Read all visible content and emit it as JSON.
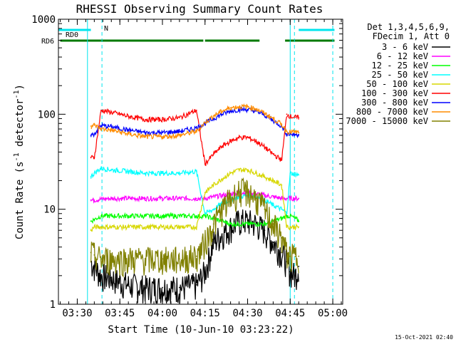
{
  "chart_data": {
    "type": "line",
    "title": "RHESSI Observing Summary Count Rates",
    "xlabel": "Start Time (10-Jun-10 03:23:22)",
    "ylabel": "Count Rate (s⁻¹ detector⁻¹)",
    "ylabel_parts": {
      "main": "Count Rate (s",
      "exp1": "-1",
      "mid": " detector",
      "exp2": "-1",
      "end": ")"
    },
    "yscale": "log",
    "ylim": [
      1,
      1000
    ],
    "xlim": [
      3.3894,
      5.0583
    ],
    "x_ticks": [
      "03:30",
      "03:45",
      "04:00",
      "04:15",
      "04:30",
      "04:45",
      "05:00"
    ],
    "x_tick_values": [
      3.5,
      3.75,
      4.0,
      4.25,
      4.5,
      4.75,
      5.0
    ],
    "y_ticks": [
      "1",
      "10",
      "100",
      "1000"
    ],
    "y_tick_values": [
      1,
      10,
      100,
      1000
    ],
    "legend_header": [
      "Det 1,3,4,5,6,9,",
      "FDecim 1, Att 0"
    ],
    "legend_placement": "top-right",
    "timestamp": "15-Oct-2021 02:40",
    "flags": [
      {
        "label": "RD0",
        "color": "#00e5ee",
        "segments": [
          [
            3.39,
            3.58
          ],
          [
            4.8,
            5.01
          ]
        ]
      },
      {
        "label": "RD6",
        "color": "#007a00",
        "segments": [
          [
            3.4,
            3.64
          ],
          [
            3.64,
            4.24
          ],
          [
            4.25,
            4.57
          ],
          [
            4.72,
            5.01
          ]
        ]
      },
      {
        "label": "N",
        "color": "#00e5ee",
        "segments": []
      }
    ],
    "vertical_lines": [
      {
        "x": 3.56,
        "color": "#00e5ee",
        "style": "solid"
      },
      {
        "x": 3.645,
        "color": "#00e5ee",
        "style": "dashed"
      },
      {
        "x": 4.75,
        "color": "#00e5ee",
        "style": "solid"
      },
      {
        "x": 4.775,
        "color": "#00e5ee",
        "style": "dashed"
      },
      {
        "x": 5.0,
        "color": "#00e5ee",
        "style": "dashed"
      }
    ],
    "series": [
      {
        "name": "3 - 6 keV",
        "color": "#000000",
        "x": [
          3.58,
          3.6,
          3.64,
          3.7,
          3.8,
          3.9,
          4.0,
          4.1,
          4.2,
          4.25,
          4.3,
          4.35,
          4.4,
          4.45,
          4.5,
          4.55,
          4.6,
          4.65,
          4.7,
          4.73,
          4.75,
          4.78,
          4.8
        ],
        "values": [
          2.8,
          2.5,
          2.0,
          1.9,
          1.6,
          1.5,
          1.5,
          1.5,
          1.6,
          2.2,
          4.5,
          5.5,
          6.5,
          7.5,
          7.5,
          7.0,
          6.0,
          4.5,
          3.5,
          2.8,
          2.2,
          2.0,
          2.5
        ]
      },
      {
        "name": "6 - 12 keV",
        "color": "#ff00ff",
        "x": [
          3.58,
          3.6,
          3.64,
          3.7,
          3.8,
          3.9,
          4.0,
          4.1,
          4.2,
          4.25,
          4.3,
          4.35,
          4.4,
          4.45,
          4.5,
          4.55,
          4.6,
          4.65,
          4.7,
          4.73,
          4.75,
          4.78,
          4.8
        ],
        "values": [
          12.5,
          12.5,
          12.8,
          13.0,
          13.0,
          13.0,
          13.0,
          13.0,
          13.0,
          13.0,
          13.5,
          14.0,
          14.5,
          15.0,
          15.0,
          14.5,
          14.0,
          13.5,
          13.0,
          13.0,
          13.0,
          13.0,
          13.0
        ]
      },
      {
        "name": "12 - 25 keV",
        "color": "#00ff00",
        "x": [
          3.58,
          3.6,
          3.64,
          3.7,
          3.8,
          3.9,
          4.0,
          4.1,
          4.2,
          4.25,
          4.3,
          4.35,
          4.4,
          4.45,
          4.5,
          4.55,
          4.6,
          4.65,
          4.7,
          4.73,
          4.75,
          4.78,
          4.8
        ],
        "values": [
          7.5,
          7.8,
          8.5,
          8.5,
          8.5,
          8.5,
          8.5,
          8.5,
          8.5,
          8.5,
          8.0,
          7.5,
          7.0,
          7.0,
          7.0,
          7.0,
          7.0,
          7.5,
          8.0,
          8.5,
          8.5,
          8.0,
          7.5
        ]
      },
      {
        "name": "25 - 50 keV",
        "color": "#00ffff",
        "x": [
          3.58,
          3.6,
          3.64,
          3.7,
          3.8,
          3.9,
          4.0,
          4.1,
          4.2,
          4.25,
          4.3,
          4.35,
          4.4,
          4.45,
          4.5,
          4.55,
          4.6,
          4.65,
          4.7,
          4.73,
          4.75,
          4.78,
          4.8
        ],
        "values": [
          22.0,
          24.0,
          27.0,
          26.0,
          25.0,
          24.0,
          24.0,
          24.0,
          25.0,
          9.0,
          10.0,
          11.5,
          12.5,
          13.5,
          14.0,
          13.5,
          12.5,
          11.0,
          10.0,
          9.0,
          24.0,
          23.5,
          23.0
        ]
      },
      {
        "name": "50 - 100 keV",
        "color": "#d7d700",
        "x": [
          3.58,
          3.6,
          3.64,
          3.7,
          3.8,
          3.9,
          4.0,
          4.1,
          4.2,
          4.25,
          4.3,
          4.35,
          4.4,
          4.45,
          4.5,
          4.55,
          4.6,
          4.65,
          4.7,
          4.73,
          4.75,
          4.78,
          4.8
        ],
        "values": [
          6.0,
          6.5,
          6.5,
          6.5,
          6.5,
          6.5,
          6.5,
          6.5,
          6.5,
          15.0,
          18.0,
          21.0,
          24.0,
          26.0,
          26.0,
          24.0,
          22.0,
          20.0,
          18.0,
          6.5,
          6.5,
          6.5,
          6.5
        ]
      },
      {
        "name": "100 - 300 keV",
        "color": "#ff0000",
        "x": [
          3.58,
          3.6,
          3.64,
          3.7,
          3.8,
          3.9,
          4.0,
          4.1,
          4.2,
          4.25,
          4.3,
          4.35,
          4.4,
          4.45,
          4.5,
          4.55,
          4.6,
          4.65,
          4.7,
          4.73,
          4.75,
          4.78,
          4.8
        ],
        "values": [
          35.0,
          35.0,
          110.0,
          105.0,
          95.0,
          88.0,
          88.0,
          92.0,
          110.0,
          30.0,
          38.0,
          46.0,
          52.0,
          57.0,
          57.0,
          52.0,
          45.0,
          38.0,
          33.0,
          100.0,
          95.0,
          93.0,
          92.0
        ]
      },
      {
        "name": "300 - 800 keV",
        "color": "#0000ff",
        "x": [
          3.58,
          3.6,
          3.64,
          3.7,
          3.8,
          3.9,
          4.0,
          4.1,
          4.2,
          4.25,
          4.3,
          4.35,
          4.4,
          4.45,
          4.5,
          4.55,
          4.6,
          4.65,
          4.7,
          4.73,
          4.75,
          4.78,
          4.8
        ],
        "values": [
          60.0,
          62.0,
          76.0,
          74.0,
          68.0,
          64.0,
          64.0,
          66.0,
          72.0,
          80.0,
          90.0,
          100.0,
          108.0,
          112.0,
          112.0,
          108.0,
          98.0,
          86.0,
          75.0,
          62.0,
          62.0,
          61.0,
          61.0
        ]
      },
      {
        "name": "800 - 7000 keV",
        "color": "#ff8c00",
        "x": [
          3.58,
          3.6,
          3.64,
          3.7,
          3.8,
          3.9,
          4.0,
          4.1,
          4.2,
          4.25,
          4.3,
          4.35,
          4.4,
          4.45,
          4.5,
          4.55,
          4.6,
          4.65,
          4.7,
          4.73,
          4.75,
          4.78,
          4.8
        ],
        "values": [
          75.0,
          77.0,
          70.0,
          68.0,
          62.0,
          58.0,
          58.0,
          60.0,
          66.0,
          82.0,
          96.0,
          108.0,
          117.0,
          120.0,
          120.0,
          114.0,
          102.0,
          90.0,
          78.0,
          66.0,
          65.0,
          65.0,
          64.0
        ]
      },
      {
        "name": "7000 - 15000 keV",
        "color": "#808000",
        "x": [
          3.58,
          3.6,
          3.64,
          3.7,
          3.8,
          3.9,
          4.0,
          4.1,
          4.2,
          4.25,
          4.3,
          4.35,
          4.4,
          4.45,
          4.5,
          4.55,
          4.6,
          4.65,
          4.7,
          4.73,
          4.75,
          4.78,
          4.8
        ],
        "values": [
          3.5,
          3.3,
          3.0,
          3.0,
          3.0,
          3.0,
          3.0,
          3.0,
          3.2,
          4.5,
          7.0,
          10.0,
          13.0,
          15.5,
          15.5,
          13.0,
          10.0,
          7.0,
          5.0,
          3.5,
          3.2,
          3.2,
          3.2
        ]
      }
    ]
  }
}
